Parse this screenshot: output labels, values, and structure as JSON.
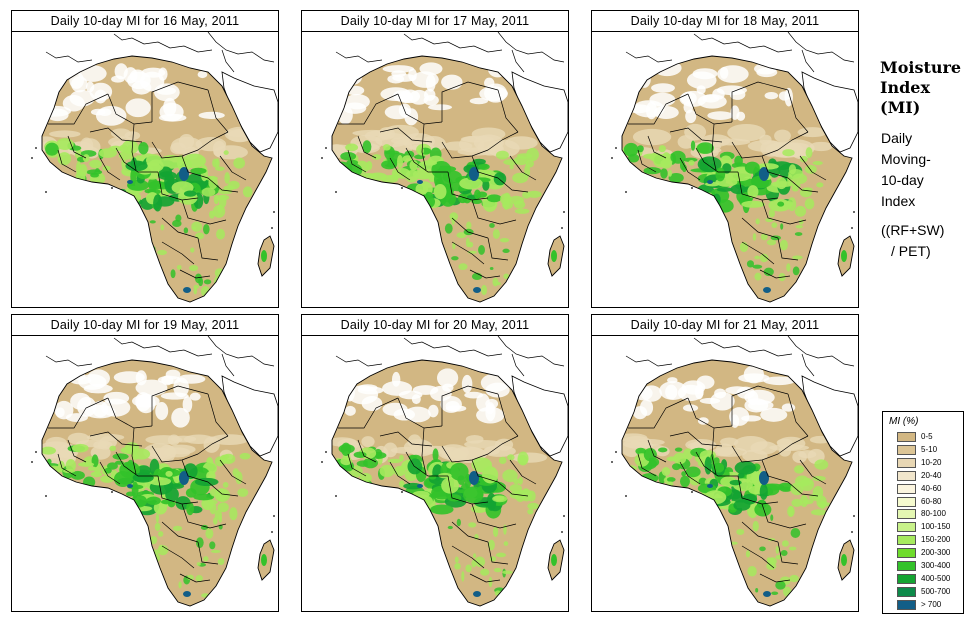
{
  "panels": [
    {
      "title": "Daily 10-day MI for  16 May, 2011"
    },
    {
      "title": "Daily 10-day MI for  17 May, 2011"
    },
    {
      "title": "Daily 10-day MI for  18 May, 2011"
    },
    {
      "title": "Daily 10-day MI for  19 May, 2011"
    },
    {
      "title": "Daily 10-day MI for  20 May, 2011"
    },
    {
      "title": "Daily 10-day MI for  21 May, 2011"
    }
  ],
  "side": {
    "title_lines": [
      "Moisture",
      "Index",
      "(MI)"
    ],
    "desc_lines": [
      "Daily",
      "Moving-",
      "10-day",
      "Index"
    ],
    "formula_lines": [
      "((RF+SW)",
      "/ PET)"
    ]
  },
  "legend": {
    "title": "MI (%)",
    "items": [
      {
        "label": "0-5",
        "color": "#d2b783"
      },
      {
        "label": "5-10",
        "color": "#dcc596"
      },
      {
        "label": "10-20",
        "color": "#e8d7b4"
      },
      {
        "label": "20-40",
        "color": "#f1e6cc"
      },
      {
        "label": "40-60",
        "color": "#fbf5df"
      },
      {
        "label": "60-80",
        "color": "#f6fbcf"
      },
      {
        "label": "80-100",
        "color": "#e4f7b2"
      },
      {
        "label": "100-150",
        "color": "#c8f28a"
      },
      {
        "label": "150-200",
        "color": "#a6ea5e"
      },
      {
        "label": "200-300",
        "color": "#6fdc2c"
      },
      {
        "label": "300-400",
        "color": "#33c22a"
      },
      {
        "label": "400-500",
        "color": "#14a432"
      },
      {
        "label": "500-700",
        "color": "#0d8a4a"
      },
      {
        "label": "> 700",
        "color": "#125e87"
      }
    ]
  },
  "colors": {
    "land_dry": "#d2b783",
    "sahara_white": "#ffffff",
    "sahel_light": "#e9d9b6",
    "green_light": "#a6ea5e",
    "green_mid": "#33c22a",
    "green_dark": "#14a432",
    "blue_wet": "#125e87",
    "border": "#000000"
  }
}
